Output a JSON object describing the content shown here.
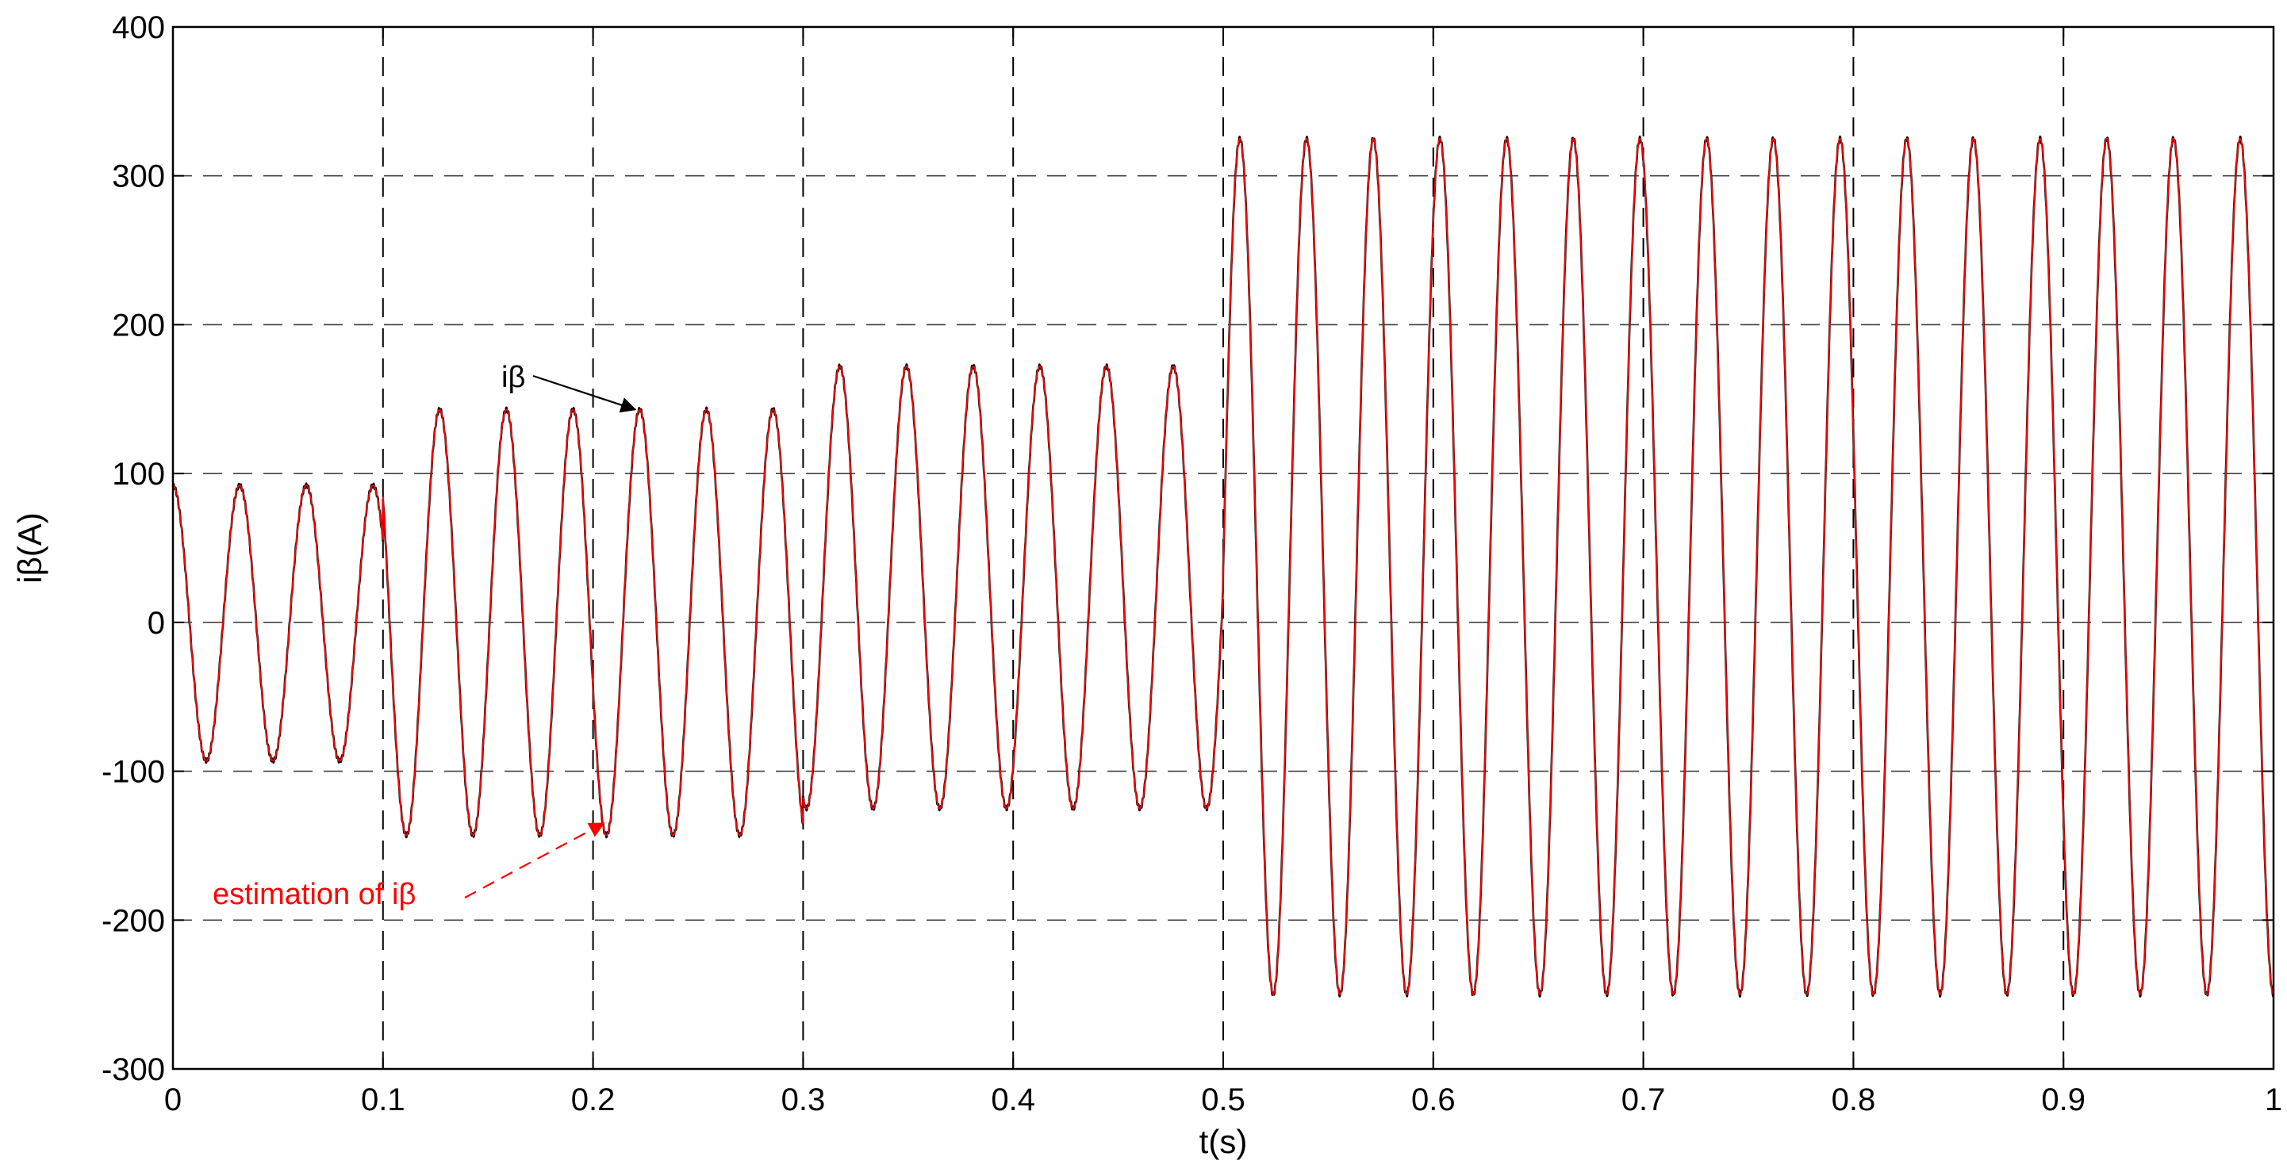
{
  "chart_data": {
    "type": "line",
    "xlabel": "t(s)",
    "ylabel": "iβ(A)",
    "xlim": [
      0,
      1
    ],
    "ylim": [
      -300,
      400
    ],
    "xticks": [
      "0",
      "0.1",
      "0.2",
      "0.3",
      "0.4",
      "0.5",
      "0.6",
      "0.7",
      "0.8",
      "0.9",
      "1"
    ],
    "yticks": [
      "-300",
      "-200",
      "-100",
      "0",
      "100",
      "200",
      "300",
      "400"
    ],
    "grid": true,
    "grid_style": "dashed",
    "signal_frequency_hz": 31.5,
    "segments": [
      {
        "t_start": 0.0,
        "t_end": 0.1,
        "peak_pos": 92,
        "peak_neg": -93
      },
      {
        "t_start": 0.1,
        "t_end": 0.3,
        "peak_pos": 143,
        "peak_neg": -143
      },
      {
        "t_start": 0.3,
        "t_end": 0.5,
        "peak_pos": 172,
        "peak_neg": -125
      },
      {
        "t_start": 0.5,
        "t_end": 1.0,
        "peak_pos": 325,
        "peak_neg": -250
      }
    ],
    "series": [
      {
        "name": "iβ",
        "color": "#000000",
        "style": "solid"
      },
      {
        "name": "estimation of iβ",
        "color": "#ff0000",
        "style": "solid"
      }
    ],
    "annotations": [
      {
        "text": "iβ",
        "color": "#000000",
        "point_to": [
          0.22,
          143
        ],
        "arrow_style": "solid"
      },
      {
        "text": "estimation of iβ",
        "color": "#ff0000",
        "point_to": [
          0.205,
          -135
        ],
        "arrow_style": "dashed"
      }
    ]
  }
}
